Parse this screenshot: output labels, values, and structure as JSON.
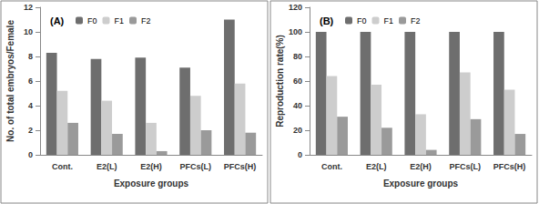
{
  "chart_data": [
    {
      "type": "bar",
      "title": "(A)",
      "x_label": "Exposure groups",
      "y_label": "No. of total embryos/Female",
      "categories": [
        "Cont.",
        "E2(L)",
        "E2(H)",
        "PFCs(L)",
        "PFCs(H)"
      ],
      "series": [
        {
          "name": "F0",
          "color": "#6e6e6e",
          "values": [
            8.3,
            7.8,
            7.9,
            7.1,
            11.0
          ]
        },
        {
          "name": "F1",
          "color": "#cdcdcd",
          "values": [
            5.2,
            4.4,
            2.6,
            4.8,
            5.8
          ]
        },
        {
          "name": "F2",
          "color": "#9a9a9a",
          "values": [
            2.6,
            1.7,
            0.3,
            2.0,
            1.8
          ]
        }
      ],
      "ylim": [
        0,
        12
      ],
      "yticks": [
        0,
        2,
        4,
        6,
        8,
        10,
        12
      ],
      "grid": false,
      "legend": "upper left"
    },
    {
      "type": "bar",
      "title": "(B)",
      "x_label": "Exposure groups",
      "y_label": "Reproduction rate(%)",
      "categories": [
        "Cont.",
        "E2(L)",
        "E2(H)",
        "PFCs(L)",
        "PFCs(H)"
      ],
      "series": [
        {
          "name": "F0",
          "color": "#6e6e6e",
          "values": [
            100,
            100,
            100,
            100,
            100
          ]
        },
        {
          "name": "F1",
          "color": "#cdcdcd",
          "values": [
            64,
            57,
            33,
            67,
            53
          ]
        },
        {
          "name": "F2",
          "color": "#9a9a9a",
          "values": [
            31,
            22,
            4,
            29,
            17
          ]
        }
      ],
      "ylim": [
        0,
        120
      ],
      "yticks": [
        0,
        20,
        40,
        60,
        80,
        100,
        120
      ],
      "grid": false,
      "legend": "upper left"
    }
  ]
}
